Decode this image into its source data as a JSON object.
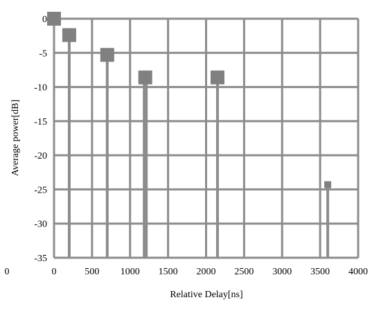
{
  "chart_data": {
    "type": "scatter",
    "title": "",
    "xlabel": "Relative Delay[ns]",
    "ylabel": "Average power[dB]",
    "xlim": [
      0,
      4000
    ],
    "ylim": [
      -35,
      0
    ],
    "x_ticks": [
      0,
      500,
      1000,
      1500,
      2000,
      2500,
      3000,
      3500,
      4000
    ],
    "y_ticks": [
      0,
      -5,
      -10,
      -15,
      -20,
      -25,
      -30,
      -35
    ],
    "x_tick_labels": [
      "0",
      "500",
      "1000",
      "1500",
      "2000",
      "2500",
      "3000",
      "3500",
      "4000"
    ],
    "y_tick_labels": [
      "0",
      "-5",
      "-10",
      "-15",
      "-20",
      "-25",
      "-30",
      "-35"
    ],
    "stray_label": "0",
    "grid": true,
    "legend": "none",
    "marker": "square",
    "series": [
      {
        "values": [
          {
            "x": 0,
            "y": 0
          },
          {
            "x": 200,
            "y": -2.4
          },
          {
            "x": 700,
            "y": -5.3
          },
          {
            "x": 1200,
            "y": -8.6
          },
          {
            "x": 2150,
            "y": -8.6
          },
          {
            "x": 3600,
            "y": -24.3
          }
        ]
      }
    ],
    "colors": {
      "grid": "#8c8c8c",
      "stem": "#8c8c8c",
      "marker": "#808080",
      "text": "#000000"
    }
  }
}
